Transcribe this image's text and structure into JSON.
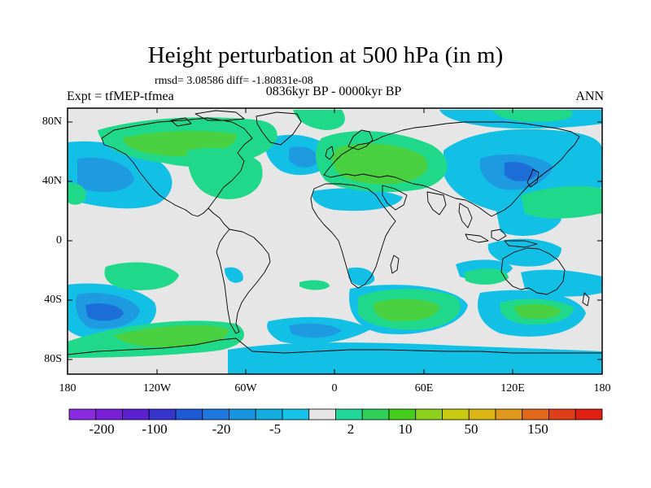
{
  "title": "Height perturbation at 500 hPa (in m)",
  "stats": "rmsd= 3.08586 diff= -1.80831e-08",
  "experiment": "Expt = tfMEP-tfmea",
  "period": "0836kyr BP - 0000kyr BP",
  "season": "ANN",
  "lat_ticks": [
    "80N",
    "40N",
    "0",
    "40S",
    "80S"
  ],
  "lon_ticks": [
    "180",
    "120W",
    "60W",
    "0",
    "60E",
    "120E",
    "180"
  ],
  "colorbar": {
    "labels": [
      "-200",
      "-100",
      "-20",
      "-5",
      "2",
      "10",
      "50",
      "150"
    ],
    "colors": [
      "#8a2be2",
      "#7a1fd8",
      "#5a20d0",
      "#3636cf",
      "#1e5ad8",
      "#1e78e0",
      "#1895e0",
      "#12aee0",
      "#15c4e6",
      "#e6e6e6",
      "#20d89a",
      "#2ed05a",
      "#46cc1a",
      "#8ed11a",
      "#c8cc10",
      "#dcb614",
      "#e0981c",
      "#e06818",
      "#e03e16",
      "#e01e12"
    ]
  },
  "map_colors": {
    "background": "#e6e6e6",
    "neg_light": "#12c0e6",
    "neg_mid": "#1e9ae0",
    "neg_strong": "#1e6ed8",
    "pos_light": "#20d88a",
    "pos_mid": "#48d040",
    "coast": "#000000"
  }
}
